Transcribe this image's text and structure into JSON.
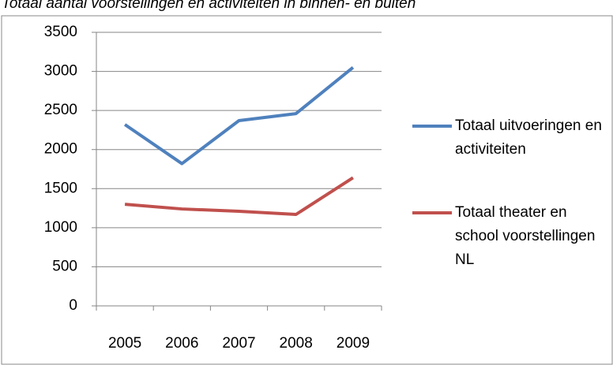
{
  "chart_data": {
    "type": "line",
    "title": "Totaal aantal voorstellingen en activiteiten in binnen- en buiten",
    "categories": [
      "2005",
      "2006",
      "2007",
      "2008",
      "2009"
    ],
    "series": [
      {
        "name": "Totaal uitvoeringen en activiteiten",
        "color": "#4f81bd",
        "values": [
          2320,
          1820,
          2370,
          2460,
          3050
        ]
      },
      {
        "name": "Totaal theater en school voorstellingen NL",
        "color": "#c0504d",
        "values": [
          1300,
          1240,
          1210,
          1170,
          1640
        ]
      }
    ],
    "ylim": [
      0,
      3500
    ],
    "yticks": [
      0,
      500,
      1000,
      1500,
      2000,
      2500,
      3000,
      3500
    ],
    "grid": true,
    "legend": "right"
  }
}
